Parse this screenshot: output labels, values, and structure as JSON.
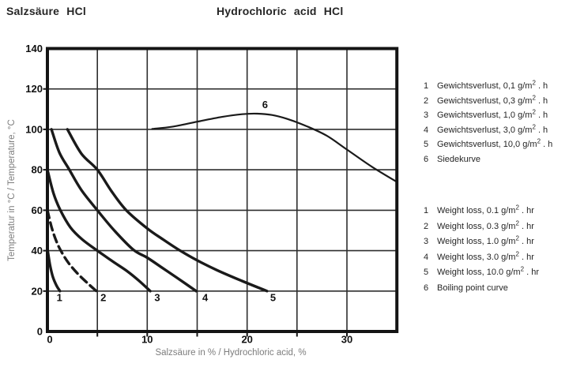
{
  "page": {
    "title_de": "Salzsäure HCl",
    "title_en": "Hydrochloric acid HCl"
  },
  "legend_de": [
    {
      "num": "1",
      "pre": "Gewichtsverlust, 0,1 g/m",
      "sup": "2",
      "post": " . h"
    },
    {
      "num": "2",
      "pre": "Gewichtsverlust, 0,3 g/m",
      "sup": "2",
      "post": " . h"
    },
    {
      "num": "3",
      "pre": "Gewichtsverlust, 1,0 g/m",
      "sup": "2",
      "post": " . h"
    },
    {
      "num": "4",
      "pre": "Gewichtsverlust, 3,0 g/m",
      "sup": "2",
      "post": " . h"
    },
    {
      "num": "5",
      "pre": "Gewichtsverlust, 10,0 g/m",
      "sup": "2",
      "post": " . h"
    },
    {
      "num": "6",
      "pre": "Siedekurve",
      "sup": "",
      "post": ""
    }
  ],
  "legend_en": [
    {
      "num": "1",
      "pre": "Weight loss, 0.1 g/m",
      "sup": "2",
      "post": " . hr"
    },
    {
      "num": "2",
      "pre": "Weight loss, 0.3 g/m",
      "sup": "2",
      "post": " . hr"
    },
    {
      "num": "3",
      "pre": "Weight loss, 1.0 g/m",
      "sup": "2",
      "post": " . hr"
    },
    {
      "num": "4",
      "pre": "Weight loss, 3.0 g/m",
      "sup": "2",
      "post": " . hr"
    },
    {
      "num": "5",
      "pre": "Weight loss, 10.0 g/m",
      "sup": "2",
      "post": " . hr"
    },
    {
      "num": "6",
      "pre": "Boiling point curve",
      "sup": "",
      "post": ""
    }
  ],
  "chart_data": {
    "type": "line",
    "xlabel": "Salzsäure in % / Hydrochloric acid, %",
    "ylabel": "Temperatur in °C / Temperature, °C",
    "xlim": [
      0,
      35
    ],
    "ylim": [
      0,
      140
    ],
    "grid": "on",
    "x_tick_labels": [
      0,
      10,
      20,
      30
    ],
    "x_gridlines": [
      5,
      10,
      15,
      20,
      25,
      30
    ],
    "y_tick_labels": [
      0,
      20,
      40,
      60,
      80,
      100,
      120,
      140
    ],
    "y_gridlines": [
      20,
      40,
      60,
      80,
      100,
      120
    ],
    "legend_position": "right",
    "series": [
      {
        "label": "1",
        "meaning": "Weight loss 0.1 g/m2·hr",
        "style": "solid",
        "points": [
          [
            0,
            41
          ],
          [
            0.25,
            33
          ],
          [
            0.55,
            27
          ],
          [
            0.9,
            22.8
          ],
          [
            1.25,
            20
          ]
        ]
      },
      {
        "label": "2",
        "meaning": "Weight loss 0.3 g/m2·hr",
        "style": "dashed",
        "points": [
          [
            0,
            60
          ],
          [
            0.45,
            51
          ],
          [
            0.95,
            44
          ],
          [
            1.4,
            39.5
          ],
          [
            2.1,
            34
          ],
          [
            3,
            28.8
          ],
          [
            4,
            24
          ],
          [
            4.9,
            20
          ]
        ]
      },
      {
        "label": "3",
        "meaning": "Weight loss 1.0 g/m2·hr",
        "style": "solid",
        "points": [
          [
            0,
            80
          ],
          [
            0.6,
            68.5
          ],
          [
            1.3,
            60
          ],
          [
            2.3,
            51.5
          ],
          [
            3.5,
            45.5
          ],
          [
            5,
            40
          ],
          [
            6.5,
            34.8
          ],
          [
            8,
            29.8
          ],
          [
            9.2,
            25
          ],
          [
            10.3,
            20
          ]
        ]
      },
      {
        "label": "4",
        "meaning": "Weight loss 3.0 g/m2·hr",
        "style": "solid",
        "points": [
          [
            0.4,
            100
          ],
          [
            1.2,
            88.5
          ],
          [
            2.2,
            80
          ],
          [
            3.4,
            70
          ],
          [
            5,
            60
          ],
          [
            6.7,
            50
          ],
          [
            8.6,
            40.5
          ],
          [
            10,
            36.5
          ],
          [
            11.5,
            31.5
          ],
          [
            13,
            26.5
          ],
          [
            14.9,
            20
          ]
        ]
      },
      {
        "label": "5",
        "meaning": "Weight loss 10.0 g/m2·hr",
        "style": "solid",
        "points": [
          [
            2,
            100
          ],
          [
            3.4,
            88
          ],
          [
            5,
            80
          ],
          [
            6.4,
            69.5
          ],
          [
            7.9,
            60
          ],
          [
            10,
            51
          ],
          [
            11.6,
            45.5
          ],
          [
            13.3,
            40
          ],
          [
            15,
            35.2
          ],
          [
            17,
            30.3
          ],
          [
            19.5,
            25
          ],
          [
            22,
            20
          ]
        ]
      },
      {
        "label": "6",
        "meaning": "Boiling point curve",
        "style": "solid",
        "thin": true,
        "points": [
          [
            10.5,
            100.2
          ],
          [
            12.5,
            101.3
          ],
          [
            15,
            103.8
          ],
          [
            17.5,
            106.2
          ],
          [
            19.5,
            107.5
          ],
          [
            21,
            107.8
          ],
          [
            22.5,
            107.1
          ],
          [
            24,
            105.2
          ],
          [
            26,
            101.5
          ],
          [
            28,
            96.8
          ],
          [
            30,
            90
          ],
          [
            32.5,
            81.5
          ],
          [
            35,
            74
          ]
        ]
      }
    ],
    "curve_labels": [
      {
        "text": "1",
        "x": 1.2,
        "y": 15
      },
      {
        "text": "2",
        "x": 5.6,
        "y": 15
      },
      {
        "text": "3",
        "x": 11.0,
        "y": 15
      },
      {
        "text": "4",
        "x": 15.8,
        "y": 15
      },
      {
        "text": "5",
        "x": 22.6,
        "y": 15
      },
      {
        "text": "6",
        "x": 21.8,
        "y": 110.5
      }
    ],
    "colors": {
      "curve": "#1a1a1a",
      "grid": "#2e2e2e",
      "border": "#141414",
      "tick_text": "#111111",
      "axis_label_text": "#7d7d7d"
    }
  }
}
